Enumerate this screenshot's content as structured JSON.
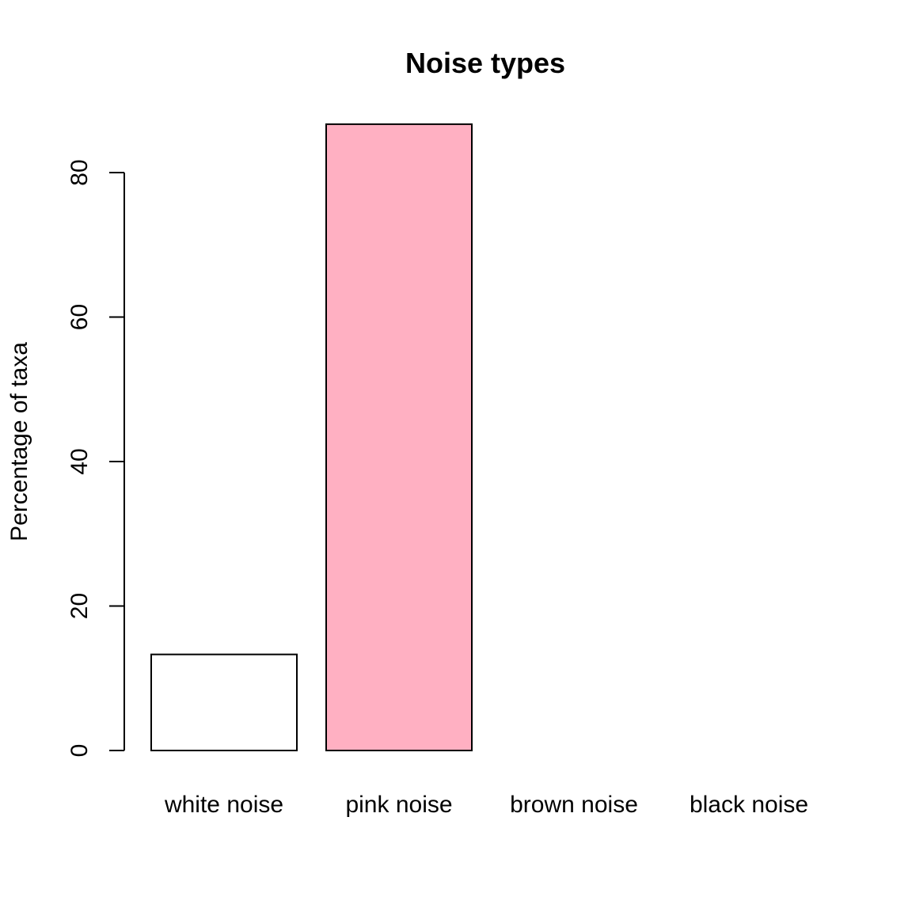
{
  "chart_data": {
    "type": "bar",
    "title": "Noise types",
    "xlabel": "",
    "ylabel": "Percentage of taxa",
    "categories": [
      "white noise",
      "pink noise",
      "brown noise",
      "black noise"
    ],
    "values": [
      13.3,
      86.7,
      0,
      0
    ],
    "colors": [
      "#ffffff",
      "#ffb0c2",
      "#ffffff",
      "#ffffff"
    ],
    "ylim": [
      0,
      86.7
    ],
    "yticks": [
      0,
      20,
      40,
      60,
      80
    ],
    "grid": false,
    "legend": "none"
  }
}
